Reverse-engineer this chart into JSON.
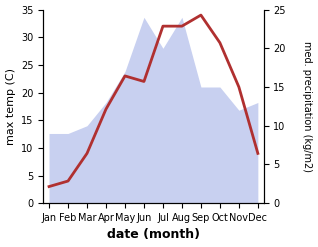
{
  "months": [
    "Jan",
    "Feb",
    "Mar",
    "Apr",
    "May",
    "Jun",
    "Jul",
    "Aug",
    "Sep",
    "Oct",
    "Nov",
    "Dec"
  ],
  "month_positions": [
    0,
    1,
    2,
    3,
    4,
    5,
    6,
    7,
    8,
    9,
    10,
    11
  ],
  "temperature": [
    3,
    4,
    9,
    17,
    23,
    22,
    32,
    32,
    34,
    29,
    21,
    9
  ],
  "precipitation": [
    9,
    9,
    10,
    13,
    17,
    24,
    20,
    24,
    15,
    15,
    12,
    13
  ],
  "temp_color": "#b03030",
  "precip_fill_color": "#c8d0f0",
  "temp_ylim": [
    0,
    35
  ],
  "precip_ylim": [
    0,
    25
  ],
  "temp_yticks": [
    0,
    5,
    10,
    15,
    20,
    25,
    30,
    35
  ],
  "precip_yticks": [
    0,
    5,
    10,
    15,
    20,
    25
  ],
  "xlabel": "date (month)",
  "ylabel_left": "max temp (C)",
  "ylabel_right": "med. precipitation (kg/m2)",
  "bg_color": "#ffffff"
}
